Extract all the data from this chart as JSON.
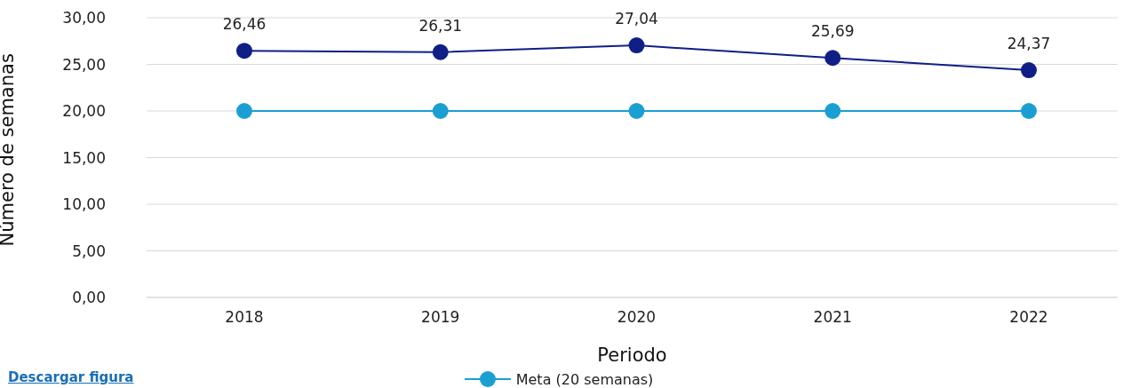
{
  "chart_data": {
    "type": "line",
    "xlabel": "Periodo",
    "ylabel": "Número de semanas",
    "categories": [
      "2018",
      "2019",
      "2020",
      "2021",
      "2022"
    ],
    "series": [
      {
        "color": "#0f1f86",
        "values": [
          26.46,
          26.31,
          27.04,
          25.69,
          24.37
        ],
        "value_labels": [
          "26,46",
          "26,31",
          "27,04",
          "25,69",
          "24,37"
        ]
      },
      {
        "name": "Meta (20 semanas)",
        "color": "#1b9fd3",
        "values": [
          20,
          20,
          20,
          20,
          20
        ]
      }
    ],
    "ylim": [
      0,
      30
    ],
    "yticks": [
      {
        "value": 0,
        "label": "0,00"
      },
      {
        "value": 5,
        "label": "5,00"
      },
      {
        "value": 10,
        "label": "10,00"
      },
      {
        "value": 15,
        "label": "15,00"
      },
      {
        "value": 20,
        "label": "20,00"
      },
      {
        "value": 25,
        "label": "25,00"
      },
      {
        "value": 30,
        "label": "30,00"
      }
    ],
    "grid": "y",
    "legend": "bottom",
    "marker": "circle",
    "line_style": "solid",
    "annotations": [
      "Descargar figura"
    ]
  }
}
